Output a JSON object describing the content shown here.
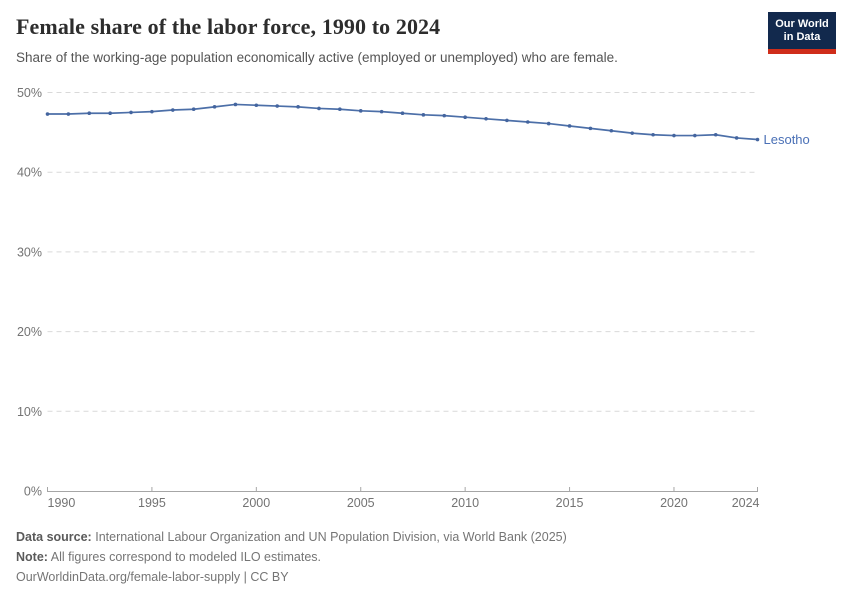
{
  "header": {
    "title": "Female share of the labor force, 1990 to 2024",
    "subtitle": "Share of the working-age population economically active (employed or unemployed) who are female.",
    "logo": {
      "line1": "Our World",
      "line2": "in Data"
    }
  },
  "chart_data": {
    "type": "line",
    "title": "Female share of the labor force, 1990 to 2024",
    "xlabel": "",
    "ylabel": "",
    "xlim": [
      1990,
      2024
    ],
    "ylim": [
      0,
      50
    ],
    "xticks": [
      1990,
      1995,
      2000,
      2005,
      2010,
      2015,
      2020,
      2024
    ],
    "yticks": [
      0,
      10,
      20,
      30,
      40,
      50
    ],
    "ytick_suffix": "%",
    "grid": "horizontal-dashed",
    "legend_position": "end-of-line",
    "series": [
      {
        "name": "Lesotho",
        "x": [
          1990,
          1991,
          1992,
          1993,
          1994,
          1995,
          1996,
          1997,
          1998,
          1999,
          2000,
          2001,
          2002,
          2003,
          2004,
          2005,
          2006,
          2007,
          2008,
          2009,
          2010,
          2011,
          2012,
          2013,
          2014,
          2015,
          2016,
          2017,
          2018,
          2019,
          2020,
          2021,
          2022,
          2023,
          2024
        ],
        "values": [
          47.3,
          47.3,
          47.4,
          47.4,
          47.5,
          47.6,
          47.8,
          47.9,
          48.2,
          48.5,
          48.4,
          48.3,
          48.2,
          48.0,
          47.9,
          47.7,
          47.6,
          47.4,
          47.2,
          47.1,
          46.9,
          46.7,
          46.5,
          46.3,
          46.1,
          45.8,
          45.5,
          45.2,
          44.9,
          44.7,
          44.6,
          44.6,
          44.7,
          44.3,
          44.1
        ]
      }
    ]
  },
  "footer": {
    "source_label": "Data source:",
    "source_text": "International Labour Organization and UN Population Division, via World Bank (2025)",
    "note_label": "Note:",
    "note_text": "All figures correspond to modeled ILO estimates.",
    "link": "OurWorldinData.org/female-labor-supply | CC BY"
  },
  "colors": {
    "line": "#4c6fa8",
    "point": "#44659f",
    "series_label": "#4a70b6",
    "grid": "#d9d9d9",
    "axis": "#a6a6a6",
    "tick_label": "#737373",
    "logo_navy": "#12294d",
    "logo_red": "#cf2d1a"
  }
}
